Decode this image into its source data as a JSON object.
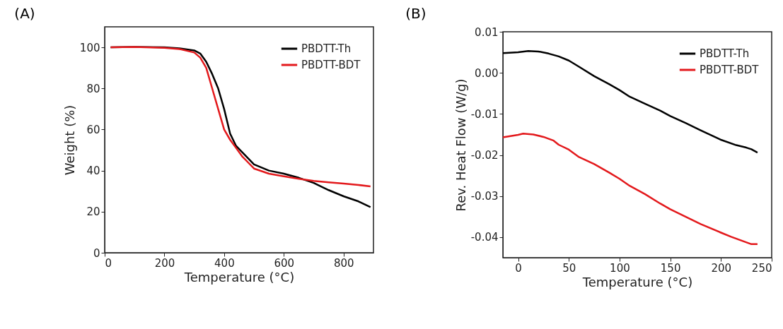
{
  "chart_data": [
    {
      "type": "line",
      "title": "(A)",
      "xlabel": "Temperature (°C)",
      "ylabel": "Weight (%)",
      "xlim": [
        0,
        900
      ],
      "ylim": [
        0,
        110
      ],
      "xticks": [
        0,
        200,
        400,
        600,
        800
      ],
      "yticks": [
        0,
        20,
        40,
        60,
        80,
        100
      ],
      "grid": false,
      "legend": "top right",
      "line_style": "solid",
      "series": [
        {
          "name": "PBDTT-Th",
          "color": "#000000",
          "x": [
            20,
            100,
            200,
            250,
            300,
            320,
            340,
            360,
            380,
            400,
            420,
            440,
            460,
            480,
            500,
            550,
            600,
            650,
            700,
            750,
            800,
            850,
            890
          ],
          "values": [
            100,
            100.2,
            100,
            99.5,
            98.5,
            97,
            93,
            87,
            80,
            70,
            58,
            52,
            49,
            46,
            43,
            40,
            38.5,
            36.5,
            34,
            30.5,
            27.5,
            25,
            22.2
          ]
        },
        {
          "name": "PBDTT-BDT",
          "color": "#e3191c",
          "x": [
            20,
            100,
            200,
            250,
            300,
            320,
            340,
            360,
            380,
            400,
            420,
            440,
            460,
            480,
            500,
            550,
            600,
            650,
            700,
            750,
            800,
            850,
            890
          ],
          "values": [
            100,
            100.2,
            99.8,
            99.2,
            97.5,
            95,
            90,
            80,
            70,
            60,
            55,
            51,
            47,
            44,
            41,
            38.5,
            37.2,
            36,
            35,
            34.3,
            33.7,
            33,
            32.3
          ]
        }
      ]
    },
    {
      "type": "line",
      "title": "(B)",
      "xlabel": "Temperature (°C)",
      "ylabel": "Rev. Heat Flow (W/g)",
      "xlim": [
        -15,
        250
      ],
      "ylim": [
        -0.045,
        0.01
      ],
      "xticks": [
        0,
        50,
        100,
        150,
        200,
        250
      ],
      "yticks": [
        0.01,
        {
          "value": 0,
          "label": "0.00"
        },
        -0.01,
        -0.02,
        -0.03,
        -0.04
      ],
      "grid": false,
      "legend": "top right",
      "line_style": "solid",
      "series": [
        {
          "name": "PBDTT-Th",
          "color": "#000000",
          "x": [
            -15,
            0,
            10,
            20,
            30,
            40,
            50,
            60,
            75,
            90,
            100,
            110,
            125,
            140,
            150,
            165,
            180,
            200,
            215,
            225,
            230,
            236
          ],
          "values": [
            0.0048,
            0.005,
            0.0053,
            0.0052,
            0.0047,
            0.004,
            0.003,
            0.0015,
            -0.0008,
            -0.0028,
            -0.0042,
            -0.0058,
            -0.0075,
            -0.0092,
            -0.0105,
            -0.0122,
            -0.014,
            -0.0163,
            -0.0176,
            -0.0182,
            -0.0186,
            -0.0194
          ]
        },
        {
          "name": "PBDTT-BDT",
          "color": "#e3191c",
          "x": [
            -15,
            0,
            5,
            15,
            25,
            35,
            40,
            50,
            60,
            75,
            90,
            100,
            110,
            125,
            140,
            150,
            165,
            180,
            200,
            210,
            220,
            230,
            236
          ],
          "values": [
            -0.0157,
            -0.0151,
            -0.0148,
            -0.015,
            -0.0156,
            -0.0165,
            -0.0175,
            -0.0187,
            -0.0205,
            -0.0222,
            -0.0243,
            -0.0258,
            -0.0275,
            -0.0295,
            -0.0318,
            -0.0332,
            -0.035,
            -0.0368,
            -0.0389,
            -0.0399,
            -0.0408,
            -0.0417,
            -0.0417
          ]
        }
      ]
    }
  ]
}
